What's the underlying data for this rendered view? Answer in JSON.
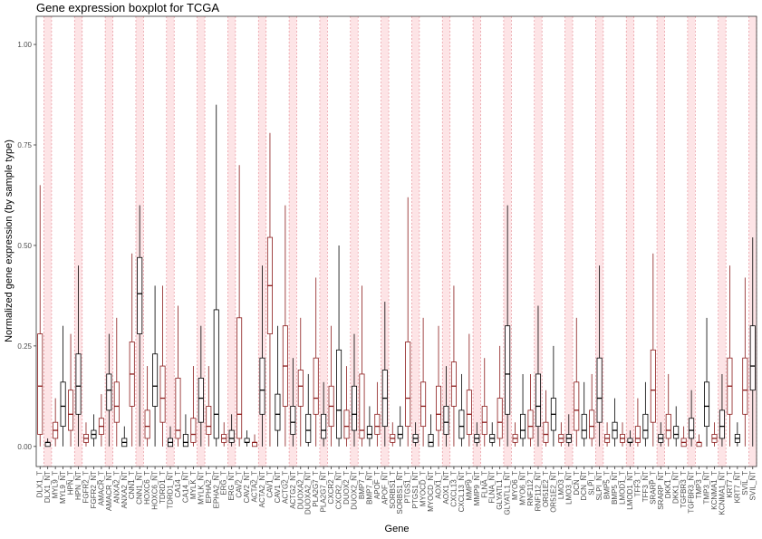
{
  "chart_data": {
    "type": "boxplot",
    "title": "Gene expression boxplot for TCGA",
    "xlabel": "Gene",
    "ylabel": "Normalized gene expression (by sample type)",
    "ylim": [
      -0.05,
      1.07
    ],
    "yticks": [
      0.0,
      0.25,
      0.5,
      0.75,
      1.0
    ],
    "ytick_labels": [
      "0.00",
      "0.25",
      "0.50",
      "0.75",
      "1.00"
    ],
    "background_shading": "alternating red bands",
    "grid": false,
    "categories": [
      "DLX1_T",
      "DLX1_NT",
      "MYL9_T",
      "MYL9_NT",
      "HPN_T",
      "HPN_NT",
      "FGFR2_T",
      "FGFR2_NT",
      "AMACR_T",
      "AMACR_NT",
      "ANXA2_T",
      "ANXA2_NT",
      "CNN1_T",
      "CNN1_NT",
      "HOXC6_T",
      "HOXC6_NT",
      "TDRD1_T",
      "TDRD1_NT",
      "CA14_T",
      "CA14_NT",
      "MYLK_T",
      "MYLK_NT",
      "EPHA2_T",
      "EPHA2_NT",
      "ERG_T",
      "ERG_NT",
      "CAV2_T",
      "CAV2_NT",
      "ACTA2_T",
      "ACTA2_NT",
      "CAV1_T",
      "CAV1_NT",
      "ACTG2_T",
      "ACTG2_NT",
      "DUOXA2_T",
      "DUOXA2_NT",
      "PLA2G7_T",
      "PLA2G7_NT",
      "CXCR2_T",
      "CXCR2_NT",
      "DUOX2_T",
      "DUOX2_NT",
      "BMP7_T",
      "BMP7_NT",
      "APOF_T",
      "APOF_NT",
      "SORBS1_T",
      "SORBS1_NT",
      "PTGS1_T",
      "PTGS1_NT",
      "MYOCD_T",
      "MYOCD_NT",
      "AOX1_T",
      "AOX1_NT",
      "CXCL13_T",
      "CXCL13_NT",
      "MMP9_T",
      "MMP9_NT",
      "FLNA_T",
      "FLNA_NT",
      "GLYATL1_T",
      "GLYATL1_NT",
      "MYO6_T",
      "MYO6_NT",
      "RNF112_T",
      "RNF112_NT",
      "OR51E2_T",
      "OR51E2_NT",
      "LMO3_T",
      "LMO3_NT",
      "DCN_T",
      "DCN_NT",
      "SLPI_T",
      "SLPI_NT",
      "BMP5_T",
      "BMP5_NT",
      "LMOD1_T",
      "LMOD1_NT",
      "TFF3_T",
      "TFF3_NT",
      "SRARP_T",
      "SRARP_NT",
      "DKK1_T",
      "DKK1_NT",
      "TGFBR3_T",
      "TGFBR3_NT",
      "TMP3_T",
      "TMP3_NT",
      "KCNMA1_T",
      "KCNMA1_NT",
      "KRT7_T",
      "KRT7_NT",
      "SVIL_T",
      "SVIL_NT"
    ],
    "series": [
      {
        "name": "T",
        "color": "#8b1a1a",
        "role": "tumor"
      },
      {
        "name": "NT",
        "color": "#000000",
        "role": "normal"
      }
    ],
    "boxes": [
      [
        0.0,
        0.03,
        0.15,
        0.28,
        0.65
      ],
      [
        0.0,
        0.0,
        0.01,
        0.01,
        0.02
      ],
      [
        0.0,
        0.02,
        0.04,
        0.06,
        0.12
      ],
      [
        0.0,
        0.05,
        0.1,
        0.16,
        0.3
      ],
      [
        0.0,
        0.04,
        0.08,
        0.14,
        0.28
      ],
      [
        0.0,
        0.08,
        0.15,
        0.23,
        0.45
      ],
      [
        0.0,
        0.01,
        0.02,
        0.03,
        0.06
      ],
      [
        0.0,
        0.02,
        0.03,
        0.04,
        0.08
      ],
      [
        0.0,
        0.03,
        0.05,
        0.07,
        0.13
      ],
      [
        0.0,
        0.09,
        0.14,
        0.18,
        0.28
      ],
      [
        0.0,
        0.06,
        0.1,
        0.16,
        0.32
      ],
      [
        0.0,
        0.0,
        0.01,
        0.02,
        0.05
      ],
      [
        0.0,
        0.1,
        0.18,
        0.26,
        0.48
      ],
      [
        0.0,
        0.28,
        0.38,
        0.47,
        0.6
      ],
      [
        0.0,
        0.02,
        0.05,
        0.09,
        0.2
      ],
      [
        0.0,
        0.1,
        0.15,
        0.23,
        0.4
      ],
      [
        0.0,
        0.06,
        0.12,
        0.2,
        0.4
      ],
      [
        0.0,
        0.0,
        0.01,
        0.02,
        0.05
      ],
      [
        0.0,
        0.02,
        0.04,
        0.17,
        0.35
      ],
      [
        0.0,
        0.0,
        0.01,
        0.03,
        0.08
      ],
      [
        0.0,
        0.01,
        0.03,
        0.07,
        0.2
      ],
      [
        0.0,
        0.06,
        0.12,
        0.17,
        0.3
      ],
      [
        0.0,
        0.03,
        0.05,
        0.1,
        0.2
      ],
      [
        0.0,
        0.02,
        0.08,
        0.34,
        0.85
      ],
      [
        0.0,
        0.01,
        0.02,
        0.03,
        0.06
      ],
      [
        0.0,
        0.01,
        0.02,
        0.04,
        0.08
      ],
      [
        0.0,
        0.02,
        0.08,
        0.32,
        0.7
      ],
      [
        0.0,
        0.01,
        0.01,
        0.02,
        0.04
      ],
      [
        0.0,
        0.0,
        0.01,
        0.01,
        0.03
      ],
      [
        0.0,
        0.08,
        0.14,
        0.22,
        0.45
      ],
      [
        0.0,
        0.28,
        0.4,
        0.52,
        0.78
      ],
      [
        0.0,
        0.04,
        0.08,
        0.13,
        0.3
      ],
      [
        0.0,
        0.1,
        0.2,
        0.3,
        0.6
      ],
      [
        0.0,
        0.03,
        0.06,
        0.1,
        0.22
      ],
      [
        0.0,
        0.1,
        0.15,
        0.19,
        0.32
      ],
      [
        0.0,
        0.01,
        0.04,
        0.08,
        0.18
      ],
      [
        0.0,
        0.08,
        0.12,
        0.22,
        0.42
      ],
      [
        0.0,
        0.02,
        0.04,
        0.08,
        0.16
      ],
      [
        0.0,
        0.05,
        0.1,
        0.15,
        0.3
      ],
      [
        0.0,
        0.02,
        0.09,
        0.24,
        0.5
      ],
      [
        0.0,
        0.02,
        0.05,
        0.09,
        0.2
      ],
      [
        0.0,
        0.04,
        0.08,
        0.15,
        0.28
      ],
      [
        0.0,
        0.02,
        0.04,
        0.18,
        0.4
      ],
      [
        0.0,
        0.02,
        0.03,
        0.05,
        0.1
      ],
      [
        0.0,
        0.03,
        0.05,
        0.08,
        0.16
      ],
      [
        0.0,
        0.05,
        0.12,
        0.19,
        0.36
      ],
      [
        0.0,
        0.01,
        0.02,
        0.03,
        0.06
      ],
      [
        0.0,
        0.02,
        0.03,
        0.05,
        0.1
      ],
      [
        0.0,
        0.05,
        0.12,
        0.26,
        0.62
      ],
      [
        0.0,
        0.01,
        0.02,
        0.03,
        0.06
      ],
      [
        0.0,
        0.05,
        0.1,
        0.16,
        0.32
      ],
      [
        0.0,
        0.0,
        0.01,
        0.03,
        0.08
      ],
      [
        0.0,
        0.04,
        0.08,
        0.15,
        0.3
      ],
      [
        0.0,
        0.03,
        0.06,
        0.1,
        0.2
      ],
      [
        0.0,
        0.1,
        0.15,
        0.21,
        0.4
      ],
      [
        0.0,
        0.02,
        0.05,
        0.09,
        0.18
      ],
      [
        0.0,
        0.03,
        0.08,
        0.14,
        0.28
      ],
      [
        0.0,
        0.01,
        0.02,
        0.03,
        0.06
      ],
      [
        0.0,
        0.03,
        0.06,
        0.1,
        0.22
      ],
      [
        0.0,
        0.01,
        0.02,
        0.03,
        0.06
      ],
      [
        0.0,
        0.02,
        0.06,
        0.12,
        0.25
      ],
      [
        0.0,
        0.08,
        0.18,
        0.3,
        0.6
      ],
      [
        0.0,
        0.01,
        0.02,
        0.03,
        0.06
      ],
      [
        0.0,
        0.02,
        0.04,
        0.08,
        0.18
      ],
      [
        0.0,
        0.02,
        0.05,
        0.09,
        0.18
      ],
      [
        0.0,
        0.05,
        0.1,
        0.18,
        0.35
      ],
      [
        0.0,
        0.01,
        0.03,
        0.06,
        0.14
      ],
      [
        0.0,
        0.04,
        0.08,
        0.12,
        0.25
      ],
      [
        0.0,
        0.01,
        0.02,
        0.03,
        0.06
      ],
      [
        0.0,
        0.01,
        0.02,
        0.03,
        0.08
      ],
      [
        0.0,
        0.04,
        0.09,
        0.16,
        0.32
      ],
      [
        0.0,
        0.02,
        0.04,
        0.08,
        0.16
      ],
      [
        0.0,
        0.02,
        0.05,
        0.09,
        0.18
      ],
      [
        0.0,
        0.06,
        0.12,
        0.22,
        0.45
      ],
      [
        0.0,
        0.01,
        0.02,
        0.03,
        0.06
      ],
      [
        0.0,
        0.02,
        0.04,
        0.06,
        0.12
      ],
      [
        0.0,
        0.01,
        0.02,
        0.03,
        0.06
      ],
      [
        0.0,
        0.01,
        0.01,
        0.02,
        0.04
      ],
      [
        0.0,
        0.01,
        0.02,
        0.05,
        0.12
      ],
      [
        0.0,
        0.02,
        0.04,
        0.08,
        0.16
      ],
      [
        0.0,
        0.06,
        0.14,
        0.24,
        0.48
      ],
      [
        0.0,
        0.01,
        0.02,
        0.03,
        0.06
      ],
      [
        0.0,
        0.02,
        0.04,
        0.08,
        0.18
      ],
      [
        0.0,
        0.02,
        0.03,
        0.05,
        0.1
      ],
      [
        0.0,
        0.0,
        0.01,
        0.02,
        0.05
      ],
      [
        0.0,
        0.02,
        0.04,
        0.07,
        0.14
      ],
      [
        0.0,
        0.0,
        0.01,
        0.01,
        0.03
      ],
      [
        0.0,
        0.05,
        0.1,
        0.16,
        0.32
      ],
      [
        0.0,
        0.01,
        0.02,
        0.03,
        0.06
      ],
      [
        0.0,
        0.02,
        0.05,
        0.09,
        0.18
      ],
      [
        0.0,
        0.08,
        0.15,
        0.22,
        0.45
      ],
      [
        0.0,
        0.01,
        0.02,
        0.03,
        0.06
      ],
      [
        0.0,
        0.08,
        0.14,
        0.22,
        0.42
      ],
      [
        0.0,
        0.14,
        0.2,
        0.3,
        0.52
      ]
    ]
  }
}
